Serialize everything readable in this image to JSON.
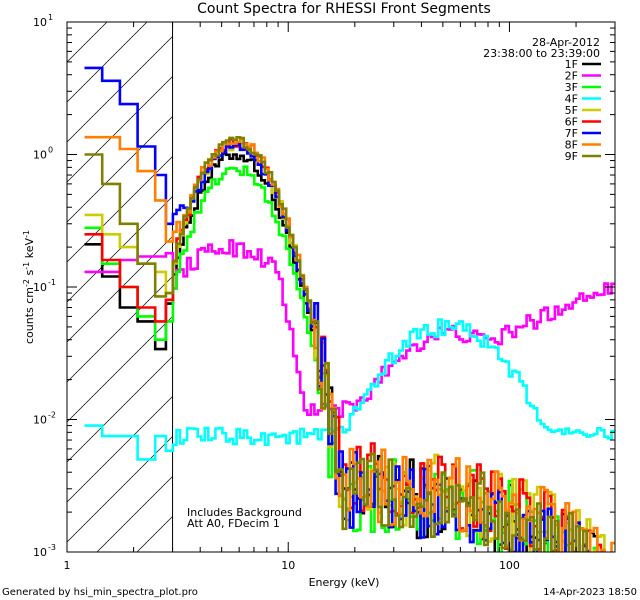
{
  "chart_data": {
    "type": "line",
    "title": "Count Spectra for RHESSI Front Segments",
    "xlabel": "Energy (keV)",
    "ylabel": "counts cm⁻² s⁻¹ keV⁻¹",
    "xscale": "log",
    "yscale": "log",
    "xlim": [
      1,
      300
    ],
    "ylim": [
      0.001,
      10
    ],
    "x_ticks": [
      {
        "value": 1,
        "label": "1"
      },
      {
        "value": 10,
        "label": "10"
      },
      {
        "value": 100,
        "label": "100"
      }
    ],
    "y_ticks": [
      {
        "value": 0.001,
        "mant": "10",
        "exp": "-3"
      },
      {
        "value": 0.01,
        "mant": "10",
        "exp": "-2"
      },
      {
        "value": 0.1,
        "mant": "10",
        "exp": "-1"
      },
      {
        "value": 1,
        "mant": "10",
        "exp": "0"
      },
      {
        "value": 10,
        "mant": "10",
        "exp": "1"
      }
    ],
    "shaded_region": {
      "x_from": 1,
      "x_to": 3
    },
    "date": "28-Apr-2012",
    "time_range": "23:38:00 to 23:39:00",
    "annotations": [
      "Includes Background",
      "Att A0, FDecim 1"
    ],
    "legend_position": "top-right",
    "series": [
      {
        "name": "1F",
        "color": "#000000",
        "low": [
          0.21,
          0.12,
          0.07,
          0.055,
          0.034,
          0.075
        ],
        "peak": 1.0,
        "peakMul": [
          1.0,
          1.0
        ],
        "hardAmp": 0.0,
        "noise": 0.003
      },
      {
        "name": "2F",
        "color": "#ff00ff",
        "low": [
          0.13,
          0.13,
          0.16,
          0.17,
          0.17,
          0.18
        ],
        "peak": 0.2,
        "peakMul": [
          1.0,
          1.0
        ],
        "hardAmp": 0.045,
        "noise": 0.0
      },
      {
        "name": "3F",
        "color": "#00ff00",
        "low": [
          0.28,
          0.15,
          0.1,
          0.06,
          0.04,
          0.055
        ],
        "peak": 0.78,
        "peakMul": [
          0.9,
          0.95
        ],
        "hardAmp": 0.0,
        "noise": 0.003
      },
      {
        "name": "4F",
        "color": "#00ffff",
        "low": [
          0.009,
          0.0075,
          0.0075,
          0.005,
          0.0075,
          0.0058
        ],
        "peak": 0.0075,
        "peakMul": [
          1.0,
          1.0
        ],
        "hardAmp": 0.05,
        "noise": 0.0
      },
      {
        "name": "5F",
        "color": "#cccc00",
        "low": [
          0.35,
          0.25,
          0.2,
          0.15,
          0.13,
          0.09
        ],
        "peak": 1.2,
        "peakMul": [
          1.0,
          1.0
        ],
        "hardAmp": 0.0,
        "noise": 0.0035
      },
      {
        "name": "6F",
        "color": "#ff0000",
        "low": [
          0.25,
          0.16,
          0.1,
          0.07,
          0.055,
          0.08
        ],
        "peak": 1.25,
        "peakMul": [
          1.0,
          1.0
        ],
        "hardAmp": 0.0,
        "noise": 0.0035
      },
      {
        "name": "7F",
        "color": "#0000ff",
        "low": [
          4.5,
          3.6,
          2.4,
          1.15,
          0.7,
          0.3
        ],
        "peak": 1.15,
        "peakMul": [
          1.0,
          1.1
        ],
        "hardAmp": 0.0,
        "noise": 0.003
      },
      {
        "name": "8F",
        "color": "#ff8000",
        "low": [
          1.35,
          1.35,
          1.1,
          0.75,
          0.45,
          0.22
        ],
        "peak": 1.3,
        "peakMul": [
          1.0,
          1.0
        ],
        "hardAmp": 0.0,
        "noise": 0.0035
      },
      {
        "name": "9F",
        "color": "#808000",
        "low": [
          1.0,
          0.6,
          0.3,
          0.15,
          0.085,
          0.09
        ],
        "peak": 1.25,
        "peakMul": [
          1.0,
          1.0
        ],
        "hardAmp": 0.0,
        "noise": 0.003
      }
    ]
  },
  "footer": {
    "left": "Generated by hsi_min_spectra_plot.pro",
    "right": "14-Apr-2023 18:50"
  }
}
